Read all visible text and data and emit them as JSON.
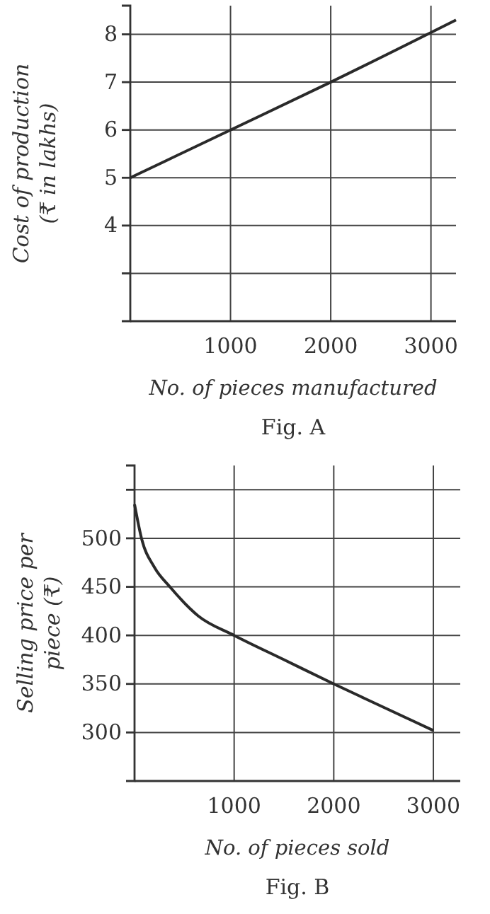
{
  "chart_data": [
    {
      "type": "line",
      "ylabel": "Cost of production\n(₹ in lakhs)",
      "xlabel": "No. of pieces manufactured",
      "annotations": [
        "Fig. A"
      ],
      "x": [
        0,
        1000,
        2000,
        3250
      ],
      "values": [
        5,
        6,
        7,
        8.3
      ],
      "color": "#2a2a2a",
      "xlim": [
        0,
        3250
      ],
      "xticks": [
        1000,
        2000,
        3000
      ],
      "ylim": [
        2,
        8.6
      ],
      "yticks": [
        {
          "value": 3,
          "label": null
        },
        4,
        5,
        6,
        7,
        8
      ],
      "grid": true
    },
    {
      "type": "line",
      "ylabel": "Selling price per\npiece (₹)",
      "xlabel": "No. of pieces sold",
      "annotations": [
        "Fig. B"
      ],
      "x": [
        0,
        70,
        200,
        355,
        640,
        1000,
        1500,
        2000,
        2500,
        3000
      ],
      "values": [
        535,
        500,
        470,
        450,
        420,
        400,
        375,
        350,
        326,
        302
      ],
      "color": "#2a2a2a",
      "xlim": [
        0,
        3270
      ],
      "xticks": [
        1000,
        2000,
        3000
      ],
      "ylim": [
        250,
        575
      ],
      "yticks": [
        300,
        350,
        400,
        450,
        500,
        {
          "value": 550,
          "label": null
        }
      ],
      "grid": true
    }
  ]
}
